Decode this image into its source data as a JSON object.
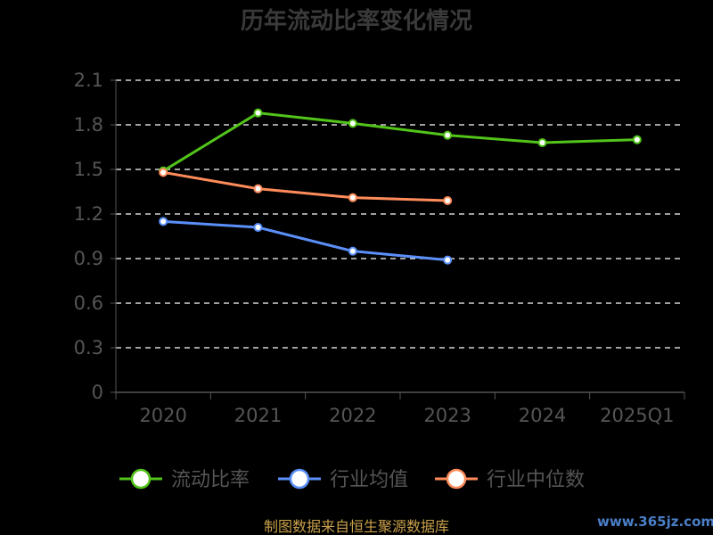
{
  "chart_data": {
    "type": "line",
    "title": "历年流动比率变化情况",
    "categories": [
      "2020",
      "2021",
      "2022",
      "2023",
      "2024",
      "2025Q1"
    ],
    "ylim": [
      0,
      2.1
    ],
    "yticks": [
      "0",
      "0.3",
      "0.6",
      "0.9",
      "1.2",
      "1.5",
      "1.8",
      "2.1"
    ],
    "grid": true,
    "legend_position": "bottom",
    "series": [
      {
        "name": "流动比率",
        "color": "#52c41a",
        "values": [
          1.49,
          1.88,
          1.81,
          1.73,
          1.68,
          1.7
        ]
      },
      {
        "name": "行业均值",
        "color": "#5b8ff9",
        "values": [
          1.15,
          1.11,
          0.95,
          0.89,
          null,
          null
        ]
      },
      {
        "name": "行业中位数",
        "color": "#ff8c5a",
        "values": [
          1.48,
          1.37,
          1.31,
          1.29,
          null,
          null
        ]
      }
    ]
  },
  "source_text": "制图数据来自恒生聚源数据库",
  "watermark_text": "www.365jz.com"
}
